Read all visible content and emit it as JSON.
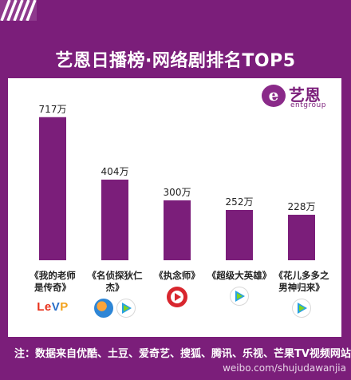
{
  "title": "艺恩日播榜·网络剧排名TOP5",
  "logo": {
    "name": "艺恩",
    "sub": "entgroup",
    "badge": "e"
  },
  "chart_data": {
    "type": "bar",
    "title": "艺恩日播榜·网络剧排名TOP5",
    "categories": [
      "《我的老师是传奇》",
      "《名侦探狄仁杰》",
      "《执念师》",
      "《超级大英雄》",
      "《花儿多多之男神归来》"
    ],
    "values": [
      717,
      404,
      300,
      252,
      228
    ],
    "value_labels": [
      "717万",
      "404万",
      "300万",
      "252万",
      "228万"
    ],
    "ylim": [
      0,
      800
    ],
    "bar_color": "#7b1e7a",
    "grid": false
  },
  "dramas": [
    {
      "name_lines": [
        "《我的老师",
        "是传奇》"
      ],
      "platforms": [
        "letv"
      ]
    },
    {
      "name_lines": [
        "《名侦探狄仁杰》"
      ],
      "platforms": [
        "tudou",
        "tencent"
      ]
    },
    {
      "name_lines": [
        "《执念师》"
      ],
      "platforms": [
        "youku"
      ]
    },
    {
      "name_lines": [
        "《超级大英雄》"
      ],
      "platforms": [
        "tencent"
      ]
    },
    {
      "name_lines": [
        "《花儿多多之",
        "男神归来》"
      ],
      "platforms": [
        "tencent"
      ]
    }
  ],
  "platform_icons": {
    "letv": "letv-logo",
    "tudou": "tudou-icon",
    "tencent": "tencent-video-icon",
    "youku": "youku-icon"
  },
  "letv_text": {
    "l": "L",
    "e": "e",
    "v": "V",
    "p": "P"
  },
  "footer_note": "注：数据来自优酷、土豆、爱奇艺、搜狐、腾讯、乐视、芒果TV视频网站",
  "watermark": "weibo.com/shujudawanjia"
}
